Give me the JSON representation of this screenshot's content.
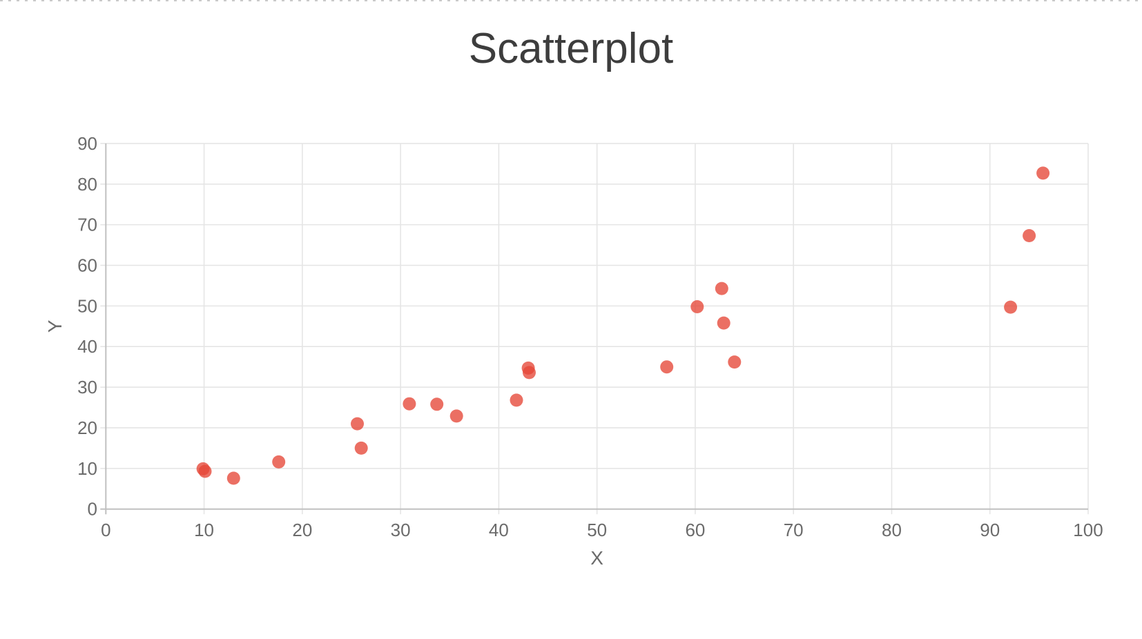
{
  "chart_data": {
    "type": "scatter",
    "title": "Scatterplot",
    "xlabel": "X",
    "ylabel": "Y",
    "xlim": [
      0,
      100
    ],
    "ylim": [
      0,
      90
    ],
    "xticks": [
      0,
      10,
      20,
      30,
      40,
      50,
      60,
      70,
      80,
      90,
      100
    ],
    "yticks": [
      0,
      10,
      20,
      30,
      40,
      50,
      60,
      70,
      80,
      90
    ],
    "grid": true,
    "legend": false,
    "marker": {
      "shape": "circle",
      "color": "#E64637",
      "opacity": 0.78,
      "radius_px": 9.5
    },
    "points": [
      [
        9.9,
        9.9
      ],
      [
        10.1,
        9.3
      ],
      [
        13.0,
        7.6
      ],
      [
        17.6,
        11.6
      ],
      [
        25.6,
        21.0
      ],
      [
        26.0,
        15.0
      ],
      [
        30.9,
        25.9
      ],
      [
        33.7,
        25.8
      ],
      [
        35.7,
        22.9
      ],
      [
        41.8,
        26.8
      ],
      [
        43.0,
        34.7
      ],
      [
        43.1,
        33.6
      ],
      [
        57.1,
        35.0
      ],
      [
        60.2,
        49.8
      ],
      [
        62.7,
        54.3
      ],
      [
        62.9,
        45.8
      ],
      [
        64.0,
        36.2
      ],
      [
        92.1,
        49.7
      ],
      [
        94.0,
        67.3
      ],
      [
        95.4,
        82.7
      ]
    ]
  },
  "colors": {
    "background": "#ffffff",
    "title_text": "#3d3d3d",
    "tick_label": "#6b6b6b",
    "axis_title": "#6b6b6b",
    "gridline": "#e5e5e5",
    "axis_line": "#c0c0c0",
    "top_border": "#c9c9c9",
    "marker": "#E64637"
  }
}
